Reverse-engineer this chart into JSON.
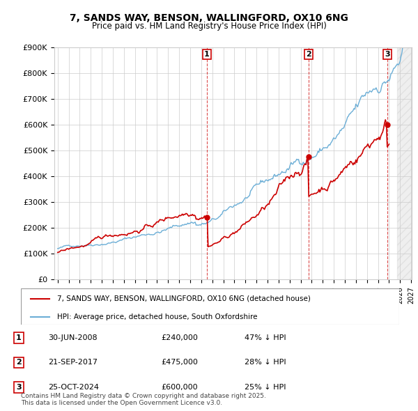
{
  "title": "7, SANDS WAY, BENSON, WALLINGFORD, OX10 6NG",
  "subtitle": "Price paid vs. HM Land Registry's House Price Index (HPI)",
  "x_start_year": 1995,
  "x_end_year": 2027,
  "y_min": 0,
  "y_max": 900000,
  "y_ticks": [
    0,
    100000,
    200000,
    300000,
    400000,
    500000,
    600000,
    700000,
    800000,
    900000
  ],
  "y_tick_labels": [
    "£0",
    "£100K",
    "£200K",
    "£300K",
    "£400K",
    "£500K",
    "£600K",
    "£700K",
    "£800K",
    "£900K"
  ],
  "hpi_color": "#6baed6",
  "price_color": "#cc0000",
  "sale1_date": 2008.5,
  "sale1_price": 240000,
  "sale2_date": 2017.72,
  "sale2_price": 475000,
  "sale3_date": 2024.82,
  "sale3_price": 600000,
  "legend_line1": "7, SANDS WAY, BENSON, WALLINGFORD, OX10 6NG (detached house)",
  "legend_line2": "HPI: Average price, detached house, South Oxfordshire",
  "table_row1": [
    "1",
    "30-JUN-2008",
    "£240,000",
    "47% ↓ HPI"
  ],
  "table_row2": [
    "2",
    "21-SEP-2017",
    "£475,000",
    "28% ↓ HPI"
  ],
  "table_row3": [
    "3",
    "25-OCT-2024",
    "£600,000",
    "25% ↓ HPI"
  ],
  "footer": "Contains HM Land Registry data © Crown copyright and database right 2025.\nThis data is licensed under the Open Government Licence v3.0.",
  "background_color": "#ffffff",
  "plot_bg_color": "#ffffff",
  "grid_color": "#cccccc"
}
